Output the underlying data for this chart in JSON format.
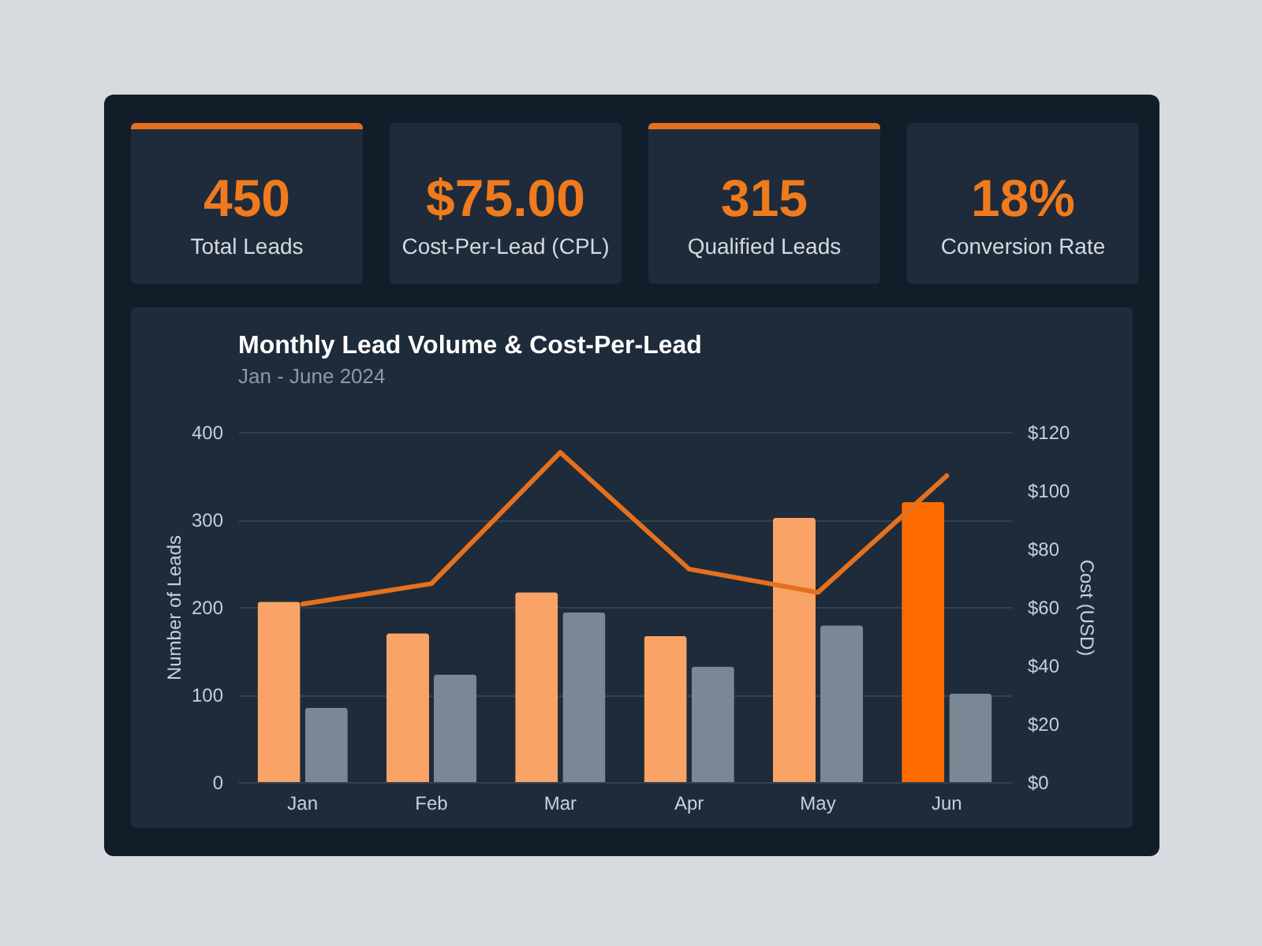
{
  "chart_data": [
    {
      "type": "other",
      "annotations": [
        "450",
        "Total Leads",
        "$75.00",
        "Cost-Per-Lead (CPL)",
        "315",
        "Qualified Leads",
        "18%",
        "Conversion Rate"
      ]
    },
    {
      "type": "bar",
      "title": "Monthly Lead Volume & Cost-Per-Lead",
      "subtitle": "Jan - June 2024",
      "ylabel": "Number of Leads",
      "y2label": "Cost (USD)",
      "categories": [
        "Jan",
        "Feb",
        "Mar",
        "Apr",
        "May",
        "Jun"
      ],
      "series": [
        {
          "colors": [
            "#f9a466",
            "#f9a466",
            "#f9a466",
            "#f9a466",
            "#f9a466",
            "#ff6d00"
          ],
          "values": [
            206,
            170,
            217,
            167,
            302,
            320
          ]
        },
        {
          "color": "#7b8795",
          "values": [
            85,
            123,
            194,
            132,
            179,
            101
          ]
        },
        {
          "type": "line",
          "axis": "y2",
          "color": "#e5701e",
          "values": [
            61,
            68,
            113,
            73,
            65,
            105
          ]
        }
      ],
      "ylim": [
        0,
        400
      ],
      "yticks": [
        0,
        100,
        200,
        300,
        400
      ],
      "y2lim": [
        0,
        120
      ],
      "y2ticks": [
        {
          "value": 0,
          "label": "$0"
        },
        {
          "value": 20,
          "label": "$20"
        },
        {
          "value": 40,
          "label": "$40"
        },
        {
          "value": 60,
          "label": "$60"
        },
        {
          "value": 80,
          "label": "$80"
        },
        {
          "value": 100,
          "label": "$100"
        },
        {
          "value": 120,
          "label": "$120"
        }
      ],
      "grid": "y"
    }
  ]
}
